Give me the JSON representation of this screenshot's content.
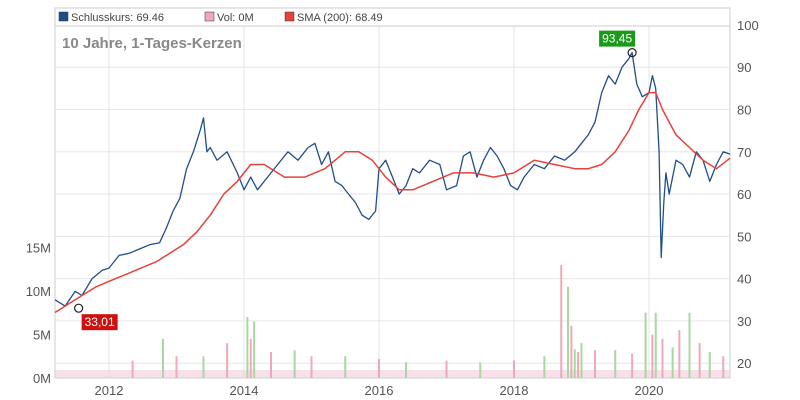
{
  "chart_data": {
    "type": "line",
    "subtitle": "10 Jahre, 1-Tages-Kerzen",
    "legend": [
      {
        "label": "Schlusskurs: 69.46",
        "color": "#1f4e8c"
      },
      {
        "label": "Vol: 0M",
        "color": "#f0a8b8"
      },
      {
        "label": "SMA (200): 68.49",
        "color": "#e8403a"
      }
    ],
    "x_ticks": [
      "2012",
      "2014",
      "2016",
      "2018",
      "2020"
    ],
    "x_tick_values": [
      2012,
      2014,
      2016,
      2018,
      2020
    ],
    "xlim": [
      2011.2,
      2021.2
    ],
    "y_ticks": [
      "20",
      "30",
      "40",
      "50",
      "60",
      "70",
      "80",
      "90",
      "100"
    ],
    "y_tick_values": [
      20,
      30,
      40,
      50,
      60,
      70,
      80,
      90,
      100
    ],
    "ylim": [
      16.5,
      104
    ],
    "volume_ticks": [
      "0M",
      "5M",
      "10M",
      "15M"
    ],
    "volume_tick_values": [
      0,
      5,
      10,
      15
    ],
    "volume_ylim": [
      0,
      42.5
    ],
    "annotations": [
      {
        "label": "93,45",
        "x": 2019.75,
        "y": 93.45,
        "color": "#1a9a1a"
      },
      {
        "label": "33,01",
        "x": 2011.55,
        "y": 33.01,
        "color": "#cc1111"
      }
    ],
    "series": [
      {
        "kind": "price",
        "color": "#1f4e8c",
        "x": [
          2011.2,
          2011.35,
          2011.5,
          2011.6,
          2011.75,
          2011.9,
          2012.0,
          2012.15,
          2012.3,
          2012.45,
          2012.6,
          2012.75,
          2012.85,
          2012.95,
          2013.05,
          2013.15,
          2013.25,
          2013.35,
          2013.4,
          2013.45,
          2013.5,
          2013.6,
          2013.75,
          2013.9,
          2014.0,
          2014.1,
          2014.2,
          2014.35,
          2014.5,
          2014.65,
          2014.8,
          2014.95,
          2015.05,
          2015.15,
          2015.25,
          2015.35,
          2015.45,
          2015.55,
          2015.65,
          2015.75,
          2015.85,
          2015.95,
          2016.0,
          2016.1,
          2016.2,
          2016.3,
          2016.4,
          2016.5,
          2016.6,
          2016.75,
          2016.9,
          2017.0,
          2017.15,
          2017.25,
          2017.35,
          2017.45,
          2017.55,
          2017.65,
          2017.75,
          2017.85,
          2017.95,
          2018.05,
          2018.15,
          2018.3,
          2018.45,
          2018.6,
          2018.75,
          2018.9,
          2019.0,
          2019.1,
          2019.2,
          2019.3,
          2019.4,
          2019.5,
          2019.6,
          2019.7,
          2019.75,
          2019.82,
          2019.9,
          2020.0,
          2020.05,
          2020.1,
          2020.15,
          2020.18,
          2020.22,
          2020.25,
          2020.3,
          2020.4,
          2020.5,
          2020.6,
          2020.7,
          2020.8,
          2020.9,
          2021.0,
          2021.1,
          2021.2
        ],
        "values": [
          35,
          33.5,
          37,
          36,
          40,
          42,
          42.5,
          45.5,
          46,
          47,
          48,
          48.5,
          52,
          56,
          59,
          66,
          70,
          75,
          78,
          70,
          71,
          68,
          70,
          65,
          61,
          64,
          61,
          64,
          67,
          70,
          68,
          71,
          72,
          67,
          70,
          63,
          62,
          60,
          58,
          55,
          54,
          56,
          66,
          68,
          64,
          60,
          62,
          66,
          65,
          68,
          67,
          61,
          62,
          69,
          70,
          64,
          68,
          71,
          69,
          66,
          62,
          61,
          64,
          67,
          66,
          69,
          68,
          70,
          72,
          74,
          77,
          84,
          88,
          86,
          90,
          92,
          93.45,
          86,
          83,
          84,
          88,
          85,
          70,
          45,
          58,
          65,
          60,
          68,
          67,
          64,
          70,
          68,
          63,
          67,
          70,
          69.46
        ]
      },
      {
        "kind": "sma200",
        "color": "#e8403a",
        "x": [
          2011.2,
          2011.5,
          2011.8,
          2012.1,
          2012.4,
          2012.7,
          2012.9,
          2013.1,
          2013.3,
          2013.5,
          2013.7,
          2013.9,
          2014.1,
          2014.3,
          2014.6,
          2014.9,
          2015.2,
          2015.5,
          2015.7,
          2015.9,
          2016.1,
          2016.3,
          2016.5,
          2016.8,
          2017.1,
          2017.4,
          2017.7,
          2018.0,
          2018.3,
          2018.6,
          2018.9,
          2019.1,
          2019.3,
          2019.5,
          2019.7,
          2019.85,
          2020.0,
          2020.1,
          2020.2,
          2020.4,
          2020.6,
          2020.8,
          2021.0,
          2021.2
        ],
        "values": [
          32,
          35,
          38,
          40,
          42,
          44,
          46,
          48,
          51,
          55,
          60,
          63,
          67,
          67,
          64,
          64,
          66,
          70,
          70,
          68,
          64,
          61,
          61,
          63,
          65,
          65,
          64,
          65,
          68,
          67,
          66,
          66,
          67,
          70,
          75,
          80,
          84,
          84,
          80,
          74,
          71,
          68,
          66,
          68.49
        ]
      }
    ],
    "volume": {
      "x": [
        2012.35,
        2012.8,
        2013.0,
        2013.4,
        2013.75,
        2014.05,
        2014.1,
        2014.15,
        2014.4,
        2014.75,
        2015.0,
        2015.5,
        2016.0,
        2016.4,
        2017.0,
        2017.5,
        2018.0,
        2018.45,
        2018.7,
        2018.8,
        2018.85,
        2018.9,
        2018.95,
        2019.0,
        2019.2,
        2019.5,
        2019.75,
        2019.95,
        2020.05,
        2020.1,
        2020.2,
        2020.35,
        2020.45,
        2020.6,
        2020.75,
        2020.9,
        2021.1
      ],
      "values": [
        2,
        4.5,
        2.5,
        2.5,
        4,
        7,
        4.5,
        6.5,
        3,
        3.2,
        2.5,
        2.5,
        2.2,
        1.8,
        2,
        1.8,
        2,
        2.5,
        13,
        10.5,
        6,
        3.3,
        3,
        4,
        3.2,
        3.2,
        2.8,
        7.5,
        5,
        7.5,
        4.5,
        3.5,
        5.5,
        7.5,
        4,
        3,
        2.5
      ]
    }
  }
}
